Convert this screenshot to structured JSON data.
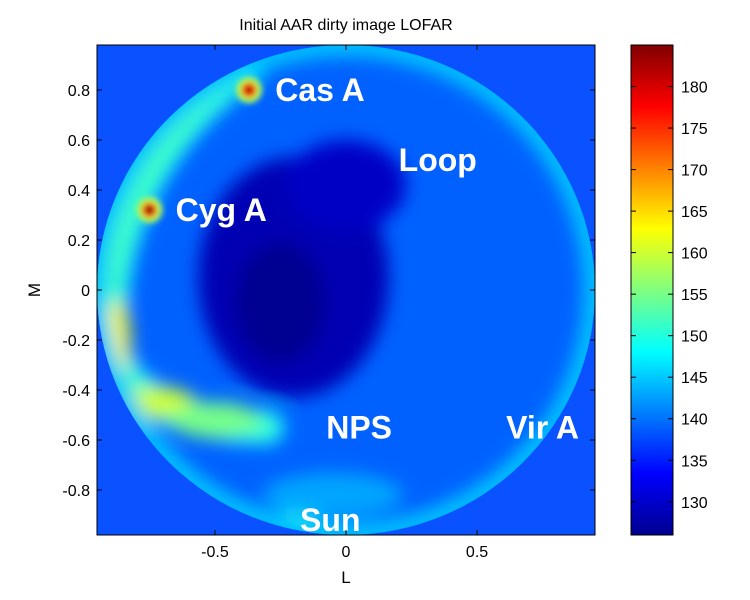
{
  "chart_data": {
    "type": "heatmap",
    "title": "Initial AAR dirty image LOFAR",
    "xlabel": "L",
    "ylabel": "M",
    "xlim": [
      -0.95,
      0.95
    ],
    "ylim": [
      -0.98,
      0.98
    ],
    "x_ticks": [
      {
        "value": -0.5,
        "label": "-0.5"
      },
      {
        "value": 0,
        "label": "0"
      },
      {
        "value": 0.5,
        "label": "0.5"
      }
    ],
    "y_ticks": [
      {
        "value": 0.8,
        "label": "0.8"
      },
      {
        "value": 0.6,
        "label": "0.6"
      },
      {
        "value": 0.4,
        "label": "0.4"
      },
      {
        "value": 0.2,
        "label": "0.2"
      },
      {
        "value": 0,
        "label": "0"
      },
      {
        "value": -0.2,
        "label": "-0.2"
      },
      {
        "value": -0.4,
        "label": "-0.4"
      },
      {
        "value": -0.6,
        "label": "-0.6"
      },
      {
        "value": -0.8,
        "label": "-0.8"
      }
    ],
    "colorbar": {
      "range": [
        126,
        185
      ],
      "ticks": [
        130,
        135,
        140,
        145,
        150,
        155,
        160,
        165,
        170,
        175,
        180
      ],
      "colormap": "jet"
    },
    "background_value": 139,
    "sources": [
      {
        "name": "Cas A",
        "l": -0.37,
        "m": 0.8,
        "value": 182,
        "label_l": 0.18,
        "label_m": 0.8
      },
      {
        "name": "Cyg A",
        "l": -0.75,
        "m": 0.32,
        "value": 185,
        "label_l": -0.46,
        "label_m": 0.32
      },
      {
        "name": "Loop",
        "l": 0.18,
        "m": 0.5,
        "value": 139,
        "label_l": 0.35,
        "label_m": 0.52
      },
      {
        "name": "NPS",
        "l": 0.05,
        "m": -0.55,
        "value": 141,
        "label_l": 0.05,
        "label_m": -0.55
      },
      {
        "name": "Vir A",
        "l": 0.73,
        "m": -0.55,
        "value": 141,
        "label_l": 0.75,
        "label_m": -0.55
      },
      {
        "name": "Sun",
        "l": -0.18,
        "m": -0.92,
        "value": 148,
        "label_l": -0.06,
        "label_m": -0.92
      }
    ],
    "features": [
      {
        "name": "galactic-plane-arc",
        "peak_value": 163
      },
      {
        "name": "central-cold-region",
        "min_value": 127
      }
    ]
  }
}
